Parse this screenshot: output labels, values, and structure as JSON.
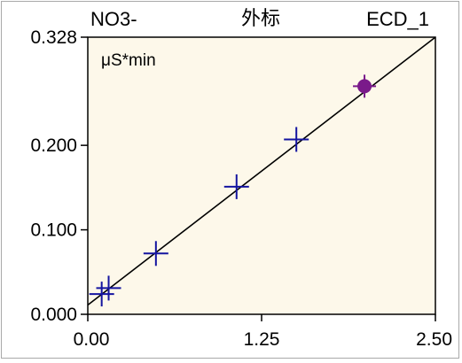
{
  "header": {
    "analyte": "NO3-",
    "method": "外标",
    "detector": "ECD_1"
  },
  "chart_data": {
    "type": "scatter",
    "title": "",
    "xlabel": "",
    "ylabel": "μS*min",
    "xlim": [
      0,
      2.5
    ],
    "ylim": [
      0,
      0.328
    ],
    "x_ticks": [
      0.0,
      1.25,
      2.5
    ],
    "x_tick_labels": [
      "0.00",
      "1.25",
      "2.50"
    ],
    "y_ticks": [
      0.0,
      0.1,
      0.2,
      0.328
    ],
    "y_tick_labels": [
      "0.000",
      "0.100",
      "0.200",
      "0.328"
    ],
    "grid": false,
    "plot_background": "#fdf8ea",
    "series": [
      {
        "marker": "plus",
        "color": "#1414a0",
        "points": [
          [
            0.1,
            0.024
          ],
          [
            0.15,
            0.031
          ],
          [
            0.49,
            0.072
          ],
          [
            1.07,
            0.151
          ],
          [
            1.5,
            0.207
          ]
        ]
      },
      {
        "marker": "filled-circle",
        "color": "#7a1a8a",
        "points": [
          [
            1.99,
            0.27
          ]
        ]
      }
    ],
    "fit_line": {
      "color": "#000000",
      "from": [
        0.0,
        0.011
      ],
      "to": [
        2.5,
        0.328
      ]
    }
  }
}
